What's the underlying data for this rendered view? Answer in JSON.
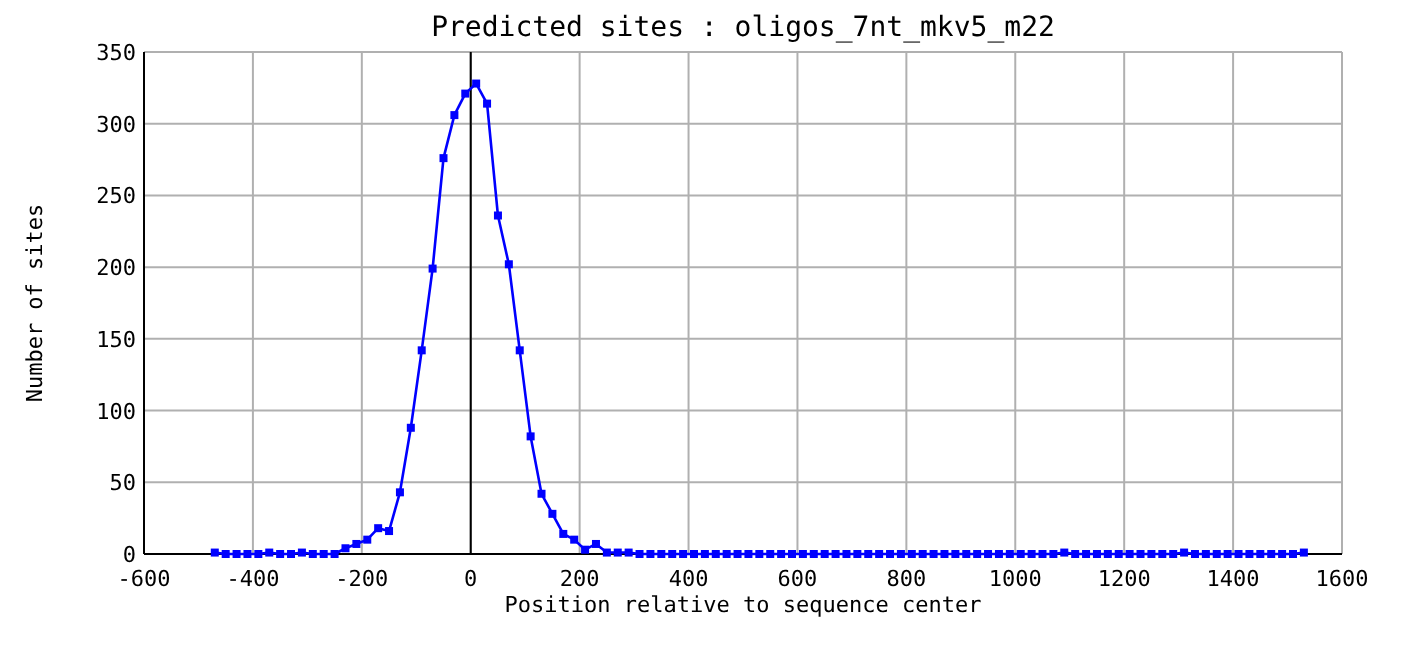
{
  "chart_data": {
    "type": "line",
    "title": "Predicted sites : oligos_7nt_mkv5_m22",
    "xlabel": "Position relative to sequence center",
    "ylabel": "Number of sites",
    "x": [
      -470,
      -450,
      -430,
      -410,
      -390,
      -370,
      -350,
      -330,
      -310,
      -290,
      -270,
      -250,
      -230,
      -210,
      -190,
      -170,
      -150,
      -130,
      -110,
      -90,
      -70,
      -50,
      -30,
      -10,
      10,
      30,
      50,
      70,
      90,
      110,
      130,
      150,
      170,
      190,
      210,
      230,
      250,
      270,
      290,
      310,
      330,
      350,
      370,
      390,
      410,
      430,
      450,
      470,
      490,
      510,
      530,
      550,
      570,
      590,
      610,
      630,
      650,
      670,
      690,
      710,
      730,
      750,
      770,
      790,
      810,
      830,
      850,
      870,
      890,
      910,
      930,
      950,
      970,
      990,
      1010,
      1030,
      1050,
      1070,
      1090,
      1110,
      1130,
      1150,
      1170,
      1190,
      1210,
      1230,
      1250,
      1270,
      1290,
      1310,
      1330,
      1350,
      1370,
      1390,
      1410,
      1430,
      1450,
      1470,
      1490,
      1510,
      1530
    ],
    "series": [
      {
        "color": "#0000ff",
        "values": [
          1,
          0,
          0,
          0,
          0,
          1,
          0,
          0,
          1,
          0,
          0,
          0,
          4,
          7,
          10,
          18,
          16,
          43,
          88,
          142,
          199,
          276,
          306,
          321,
          328,
          314,
          236,
          202,
          142,
          82,
          42,
          28,
          14,
          10,
          3,
          7,
          1,
          1,
          1,
          0,
          0,
          0,
          0,
          0,
          0,
          0,
          0,
          0,
          0,
          0,
          0,
          0,
          0,
          0,
          0,
          0,
          0,
          0,
          0,
          0,
          0,
          0,
          0,
          0,
          0,
          0,
          0,
          0,
          0,
          0,
          0,
          0,
          0,
          0,
          0,
          0,
          0,
          0,
          1,
          0,
          0,
          0,
          0,
          0,
          0,
          0,
          0,
          0,
          0,
          1,
          0,
          0,
          0,
          0,
          0,
          0,
          0,
          0,
          0,
          0,
          1
        ]
      }
    ],
    "xlim": [
      -600,
      1600
    ],
    "xticks": [
      -600,
      -400,
      -200,
      0,
      200,
      400,
      600,
      800,
      1000,
      1200,
      1400,
      1600
    ],
    "ylim": [
      0,
      350
    ],
    "yticks": [
      0,
      50,
      100,
      150,
      200,
      250,
      300,
      350
    ],
    "grid": true,
    "marker": "square",
    "line_style": "solid",
    "ref_lines": [
      {
        "axis": "x",
        "value": 0,
        "color": "#000000"
      }
    ]
  }
}
